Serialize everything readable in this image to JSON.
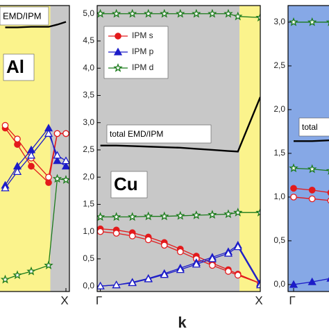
{
  "chart_data": [
    {
      "type": "line",
      "x": [
        0.65,
        0.72,
        0.8,
        0.9,
        0.95,
        1
      ],
      "xlim": [
        -0.02,
        1.02
      ],
      "ylim": [
        -0.1,
        5.15
      ],
      "xticks": [
        {
          "value": 1,
          "label": "X"
        }
      ],
      "regions": [
        {
          "from": -0.02,
          "to": 0.91,
          "color": "#fbf38c"
        },
        {
          "from": 0.91,
          "to": 1.02,
          "color": "#c8c8c8"
        }
      ],
      "annotations": [
        "EMD/IPM",
        "Al"
      ],
      "series": [
        {
          "color": "#e31a1c",
          "marker": "circle",
          "filled": true,
          "values": [
            2.9,
            2.6,
            2.2,
            1.9,
            2.8,
            2.8
          ]
        },
        {
          "color": "#e31a1c",
          "marker": "circle",
          "filled": false,
          "values": [
            2.95,
            2.7,
            2.35,
            2.0,
            2.8,
            2.8
          ]
        },
        {
          "color": "#1c1cc8",
          "marker": "triangle",
          "filled": true,
          "values": [
            1.85,
            2.2,
            2.5,
            2.9,
            2.3,
            2.2
          ]
        },
        {
          "color": "#1c1cc8",
          "marker": "triangle",
          "filled": false,
          "values": [
            1.8,
            2.1,
            2.4,
            2.8,
            2.4,
            2.3
          ]
        },
        {
          "color": "#1a7a1a",
          "marker": "star",
          "filled": false,
          "values": [
            0.12,
            0.2,
            0.27,
            0.38,
            1.97,
            1.95
          ]
        },
        {
          "color": "#000000",
          "marker": "none",
          "filled": false,
          "values": [
            4.75,
            4.75,
            4.76,
            4.76,
            4.8,
            4.85
          ]
        }
      ]
    },
    {
      "type": "line",
      "x": [
        0,
        0.1,
        0.2,
        0.3,
        0.4,
        0.5,
        0.6,
        0.7,
        0.8,
        0.86,
        1
      ],
      "xlim": [
        -0.02,
        1
      ],
      "ylim": [
        -0.1,
        5.15
      ],
      "xticks": [
        {
          "value": 0,
          "label": "Γ"
        },
        {
          "value": 1,
          "label": "X"
        }
      ],
      "yticks": [
        {
          "value": 0,
          "label": "0,0"
        },
        {
          "value": 0.5,
          "label": "0,5"
        },
        {
          "value": 1,
          "label": "1,0"
        },
        {
          "value": 1.5,
          "label": "1,5"
        },
        {
          "value": 2,
          "label": "2,0"
        },
        {
          "value": 2.5,
          "label": "2,5"
        },
        {
          "value": 3,
          "label": "3,0"
        },
        {
          "value": 3.5,
          "label": "3,5"
        },
        {
          "value": 4,
          "label": "4,0"
        },
        {
          "value": 4.5,
          "label": "4,5"
        },
        {
          "value": 5,
          "label": "5,0"
        }
      ],
      "xlabel": "k",
      "legend": "upper left",
      "regions": [
        {
          "from": -0.02,
          "to": 0.87,
          "color": "#c8c8c8"
        },
        {
          "from": 0.87,
          "to": 1,
          "color": "#fbf38c"
        }
      ],
      "annotations": [
        "total EMD/IPM",
        "Cu"
      ],
      "series": [
        {
          "name": "IPM s",
          "color": "#e31a1c",
          "marker": "circle",
          "filled": true,
          "values": [
            1.05,
            1.03,
            0.98,
            0.9,
            0.8,
            0.68,
            0.55,
            0.42,
            0.3,
            0.22,
            0.05
          ]
        },
        {
          "color": "#e31a1c",
          "marker": "circle",
          "filled": false,
          "values": [
            1.0,
            0.97,
            0.92,
            0.85,
            0.75,
            0.63,
            0.5,
            0.38,
            0.27,
            0.2,
            0.05
          ]
        },
        {
          "name": "IPM p",
          "color": "#1c1cc8",
          "marker": "triangle",
          "filled": true,
          "values": [
            0,
            0.02,
            0.07,
            0.14,
            0.23,
            0.33,
            0.43,
            0.53,
            0.63,
            0.75,
            0.05
          ]
        },
        {
          "color": "#1c1cc8",
          "marker": "triangle",
          "filled": false,
          "values": [
            0,
            0.02,
            0.06,
            0.13,
            0.21,
            0.3,
            0.4,
            0.5,
            0.6,
            0.72,
            0.02
          ]
        },
        {
          "name": "IPM d",
          "color": "#1a7a1a",
          "marker": "star",
          "filled": false,
          "values": [
            1.27,
            1.27,
            1.27,
            1.28,
            1.28,
            1.29,
            1.3,
            1.31,
            1.32,
            1.35,
            1.35
          ]
        },
        {
          "color": "#1a7a1a",
          "marker": "star",
          "filled": false,
          "values": [
            5.0,
            5.0,
            5.0,
            5.0,
            5.0,
            5.0,
            5.0,
            5.0,
            5.0,
            4.95,
            4.93
          ]
        },
        {
          "color": "#000000",
          "marker": "none",
          "filled": false,
          "values": [
            2.58,
            2.58,
            2.57,
            2.56,
            2.55,
            2.54,
            2.52,
            2.5,
            2.48,
            2.47,
            3.47
          ]
        }
      ]
    },
    {
      "type": "line",
      "x": [
        0,
        0.1,
        0.2
      ],
      "xlim": [
        -0.03,
        1
      ],
      "ylim": [
        -0.08,
        3.19
      ],
      "xticks": [
        {
          "value": 0,
          "label": "Γ"
        }
      ],
      "yticks": [
        {
          "value": 0,
          "label": "0,0"
        },
        {
          "value": 0.5,
          "label": "0,5"
        },
        {
          "value": 1,
          "label": "1,0"
        },
        {
          "value": 1.5,
          "label": "1,5"
        },
        {
          "value": 2,
          "label": "2,0"
        },
        {
          "value": 2.5,
          "label": "2,5"
        },
        {
          "value": 3,
          "label": "3,0"
        }
      ],
      "regions": [
        {
          "from": -0.03,
          "to": 1,
          "color": "#86a8e6"
        }
      ],
      "annotations": [
        "total"
      ],
      "series": [
        {
          "color": "#e31a1c",
          "marker": "circle",
          "filled": true,
          "values": [
            1.1,
            1.08,
            1.05
          ]
        },
        {
          "color": "#e31a1c",
          "marker": "circle",
          "filled": false,
          "values": [
            1.0,
            0.98,
            0.96
          ]
        },
        {
          "color": "#1c1cc8",
          "marker": "triangle",
          "filled": true,
          "values": [
            0.0,
            0.03,
            0.07
          ]
        },
        {
          "color": "#1a7a1a",
          "marker": "star",
          "filled": false,
          "values": [
            1.33,
            1.32,
            1.3
          ]
        },
        {
          "color": "#1a7a1a",
          "marker": "star",
          "filled": false,
          "values": [
            3.0,
            3.0,
            3.0
          ]
        },
        {
          "color": "#000000",
          "marker": "none",
          "filled": false,
          "values": [
            1.64,
            1.64,
            1.65
          ]
        }
      ]
    }
  ]
}
